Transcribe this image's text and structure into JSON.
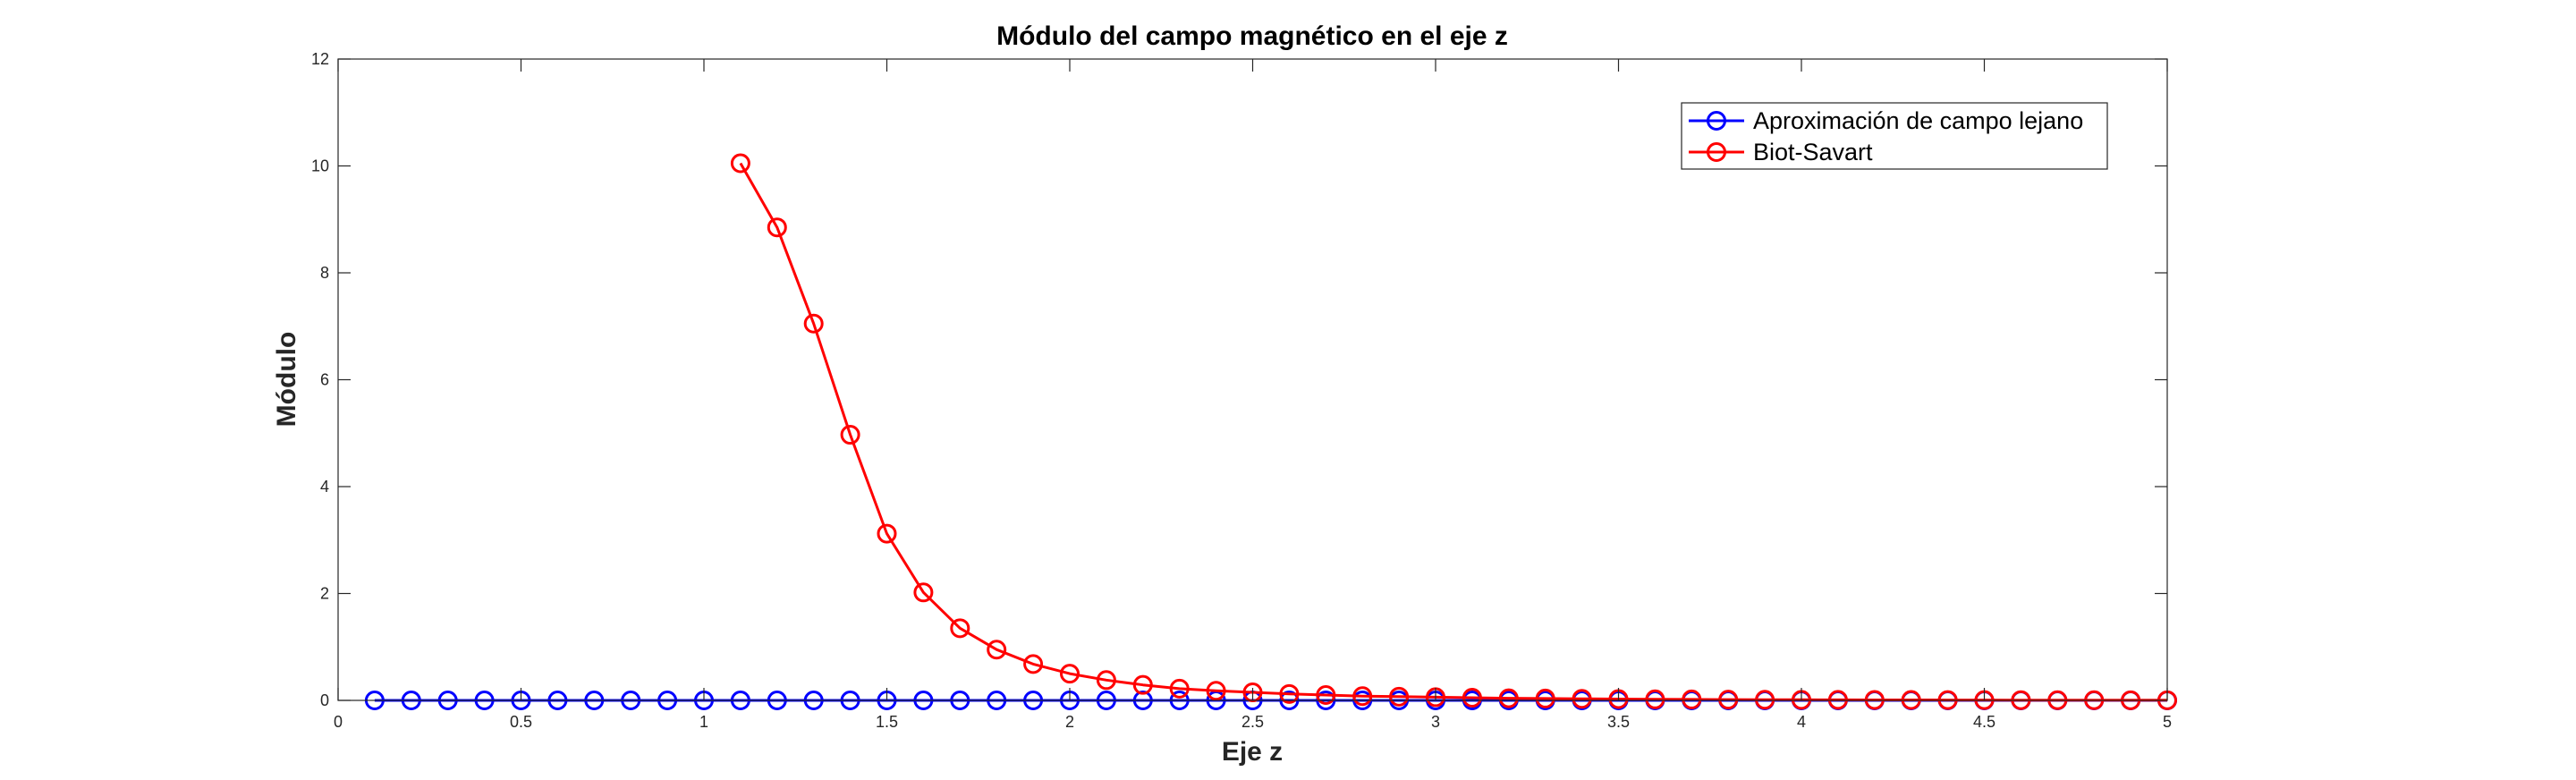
{
  "chart_data": {
    "type": "line",
    "title": "Módulo del campo magnético en el eje z",
    "xlabel": "Eje z",
    "ylabel": "Módulo",
    "xlim": [
      0,
      5
    ],
    "ylim": [
      0,
      12
    ],
    "xticks": [
      0,
      0.5,
      1,
      1.5,
      2,
      2.5,
      3,
      3.5,
      4,
      4.5,
      5
    ],
    "xtick_labels": [
      "0",
      "0.5",
      "1",
      "1.5",
      "2",
      "2.5",
      "3",
      "3.5",
      "4",
      "4.5",
      "5"
    ],
    "yticks": [
      0,
      2,
      4,
      6,
      8,
      10,
      12
    ],
    "ytick_labels": [
      "0",
      "2",
      "4",
      "6",
      "8",
      "10",
      "12"
    ],
    "grid": false,
    "legend_position": "top-right",
    "series": [
      {
        "name": "Aproximación de campo lejano",
        "color": "#0000ff",
        "marker": "circle",
        "x": [
          0.1,
          0.2,
          0.3,
          0.4,
          0.5,
          0.6,
          0.7,
          0.8,
          0.9,
          1.0,
          1.1,
          1.2,
          1.3,
          1.4,
          1.5,
          1.6,
          1.7,
          1.8,
          1.9,
          2.0,
          2.1,
          2.2,
          2.3,
          2.4,
          2.5,
          2.6,
          2.7,
          2.8,
          2.9,
          3.0,
          3.1,
          3.2,
          3.3,
          3.4,
          3.5,
          3.6,
          3.7,
          3.8,
          3.9,
          4.0,
          4.1,
          4.2,
          4.3,
          4.4,
          4.5,
          4.6,
          4.7,
          4.8,
          4.9,
          5.0
        ],
        "y": [
          0,
          0,
          0,
          0,
          0,
          0,
          0,
          0,
          0,
          0,
          0,
          0,
          0,
          0,
          0,
          0,
          0,
          0,
          0,
          0,
          0,
          0,
          0,
          0,
          0,
          0,
          0,
          0,
          0,
          0,
          0,
          0,
          0,
          0,
          0,
          0,
          0,
          0,
          0,
          0,
          0,
          0,
          0,
          0,
          0,
          0,
          0,
          0,
          0,
          0
        ]
      },
      {
        "name": "Biot-Savart",
        "color": "#ff0000",
        "marker": "circle",
        "x": [
          1.1,
          1.2,
          1.3,
          1.4,
          1.5,
          1.6,
          1.7,
          1.8,
          1.9,
          2.0,
          2.1,
          2.2,
          2.3,
          2.4,
          2.5,
          2.6,
          2.7,
          2.8,
          2.9,
          3.0,
          3.1,
          3.2,
          3.3,
          3.4,
          3.5,
          3.6,
          3.7,
          3.8,
          3.9,
          4.0,
          4.1,
          4.2,
          4.3,
          4.4,
          4.5,
          4.6,
          4.7,
          4.8,
          4.9,
          5.0
        ],
        "y": [
          10.05,
          8.85,
          7.05,
          4.97,
          3.12,
          2.02,
          1.35,
          0.95,
          0.68,
          0.5,
          0.38,
          0.29,
          0.22,
          0.18,
          0.15,
          0.12,
          0.1,
          0.08,
          0.07,
          0.06,
          0.05,
          0.04,
          0.035,
          0.03,
          0.025,
          0.02,
          0.018,
          0.015,
          0.013,
          0.011,
          0.01,
          0.009,
          0.008,
          0.007,
          0.006,
          0.005,
          0.004,
          0.004,
          0.003,
          0.003
        ]
      }
    ]
  }
}
